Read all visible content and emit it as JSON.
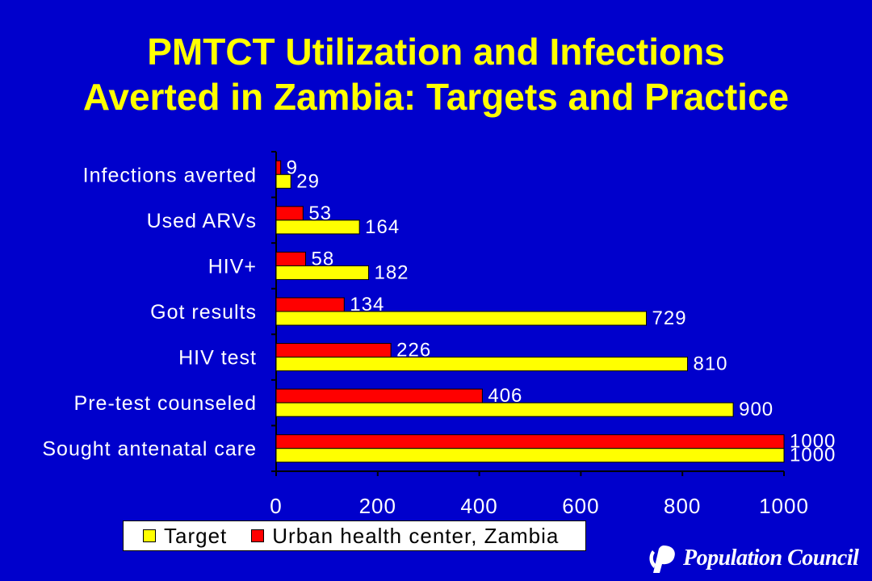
{
  "slide": {
    "title_line1": "PMTCT Utilization and Infections",
    "title_line2": "Averted in Zambia: Targets and Practice",
    "logo_text": "Population Council"
  },
  "colors": {
    "background": "#0000CC",
    "title": "#FFFF00",
    "target": "#FFFF00",
    "urban": "#FF0000",
    "text": "#FFFFFF"
  },
  "chart_data": {
    "type": "bar",
    "orientation": "horizontal",
    "title": "",
    "xlabel": "",
    "ylabel": "",
    "categories": [
      "Infections averted",
      "Used ARVs",
      "HIV+",
      "Got results",
      "HIV test",
      "Pre-test counseled",
      "Sought antenatal care"
    ],
    "series": [
      {
        "name": "Urban health center, Zambia",
        "color": "#FF0000",
        "values": [
          9,
          53,
          58,
          134,
          226,
          406,
          1000
        ]
      },
      {
        "name": "Target",
        "color": "#FFFF00",
        "values": [
          29,
          164,
          182,
          729,
          810,
          900,
          1000
        ]
      }
    ],
    "xlim": [
      0,
      1000
    ],
    "xticks": [
      "0",
      "200",
      "400",
      "600",
      "800",
      "1000"
    ],
    "grid": false,
    "data_labels": true,
    "legend": {
      "position": "bottom",
      "entries": [
        {
          "label": "Target",
          "color": "#FFFF00"
        },
        {
          "label": "Urban health center, Zambia",
          "color": "#FF0000"
        }
      ]
    }
  }
}
